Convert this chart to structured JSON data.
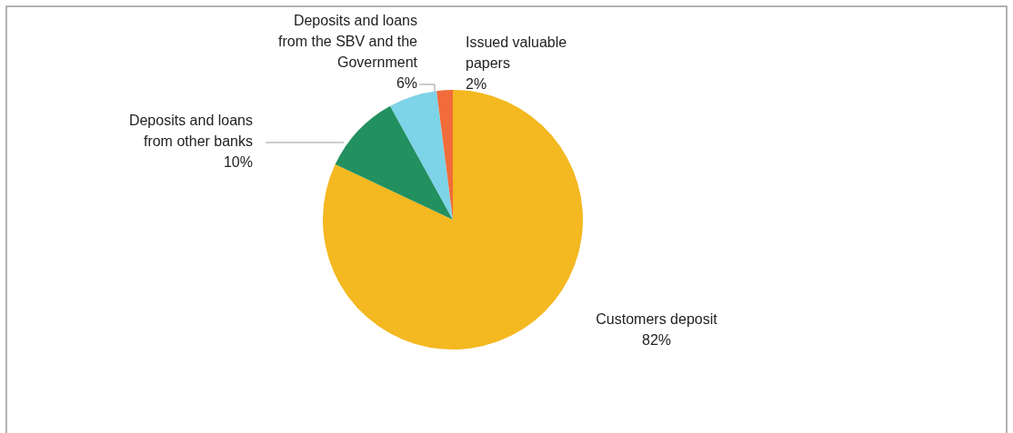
{
  "chart_data": {
    "type": "pie",
    "categories": [
      "Customers deposit",
      "Deposits and loans from other banks",
      "Deposits and loans from the SBV and the Government",
      "Issued valuable papers"
    ],
    "values": [
      82,
      10,
      6,
      2
    ],
    "value_labels": [
      "82%",
      "10%",
      "6%",
      "2%"
    ],
    "colors": [
      "#f4b820",
      "#239060",
      "#7dd3e8",
      "#f26b3a"
    ]
  }
}
